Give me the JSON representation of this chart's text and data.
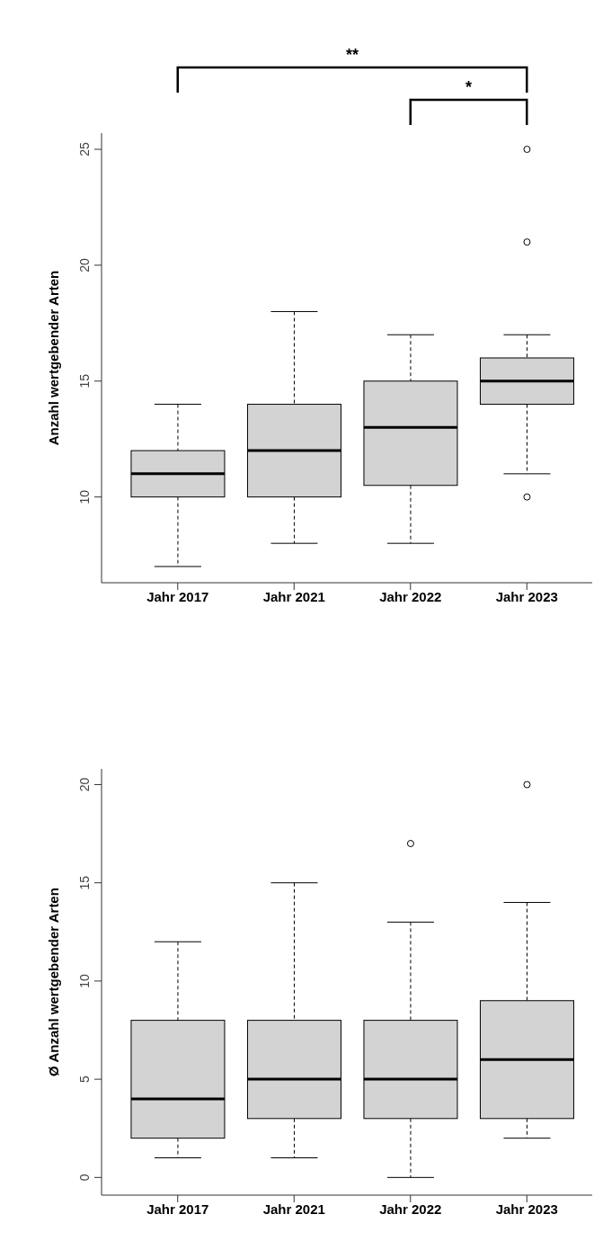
{
  "chart_data": [
    {
      "type": "box",
      "ylabel": "Anzahl wertgebender Arten",
      "categories": [
        "Jahr 2017",
        "Jahr 2021",
        "Jahr 2022",
        "Jahr 2023"
      ],
      "color": "#d3d3d3",
      "ylim": [
        6.3,
        25.7
      ],
      "yticks": [
        10,
        15,
        20,
        25
      ],
      "annotations": [
        "**",
        "*"
      ],
      "boxes": [
        {
          "low": 7,
          "q1": 10,
          "median": 11,
          "q3": 12,
          "high": 14
        },
        {
          "low": 8,
          "q1": 10,
          "median": 12,
          "q3": 14,
          "high": 18
        },
        {
          "low": 8,
          "q1": 10.5,
          "median": 13,
          "q3": 15,
          "high": 17
        },
        {
          "low": 11,
          "q1": 14,
          "median": 15,
          "q3": 16,
          "high": 17,
          "outliers": [
            25,
            21,
            10
          ]
        }
      ]
    },
    {
      "type": "box",
      "ylabel": "Ø Anzahl wertgebender Arten",
      "categories": [
        "Jahr 2017",
        "Jahr 2021",
        "Jahr 2022",
        "Jahr 2023"
      ],
      "color": "#d3d3d3",
      "ylim": [
        -0.9,
        20.8
      ],
      "yticks": [
        0,
        5,
        10,
        15,
        20
      ],
      "boxes": [
        {
          "low": 1,
          "q1": 2,
          "median": 4,
          "q3": 8,
          "high": 12
        },
        {
          "low": 1,
          "q1": 3,
          "median": 5,
          "q3": 8,
          "high": 15
        },
        {
          "low": 0,
          "q1": 3,
          "median": 5,
          "q3": 8,
          "high": 13,
          "outliers": [
            17
          ]
        },
        {
          "low": 2,
          "q1": 3,
          "median": 6,
          "q3": 9,
          "high": 14,
          "outliers": [
            20
          ]
        }
      ]
    }
  ]
}
